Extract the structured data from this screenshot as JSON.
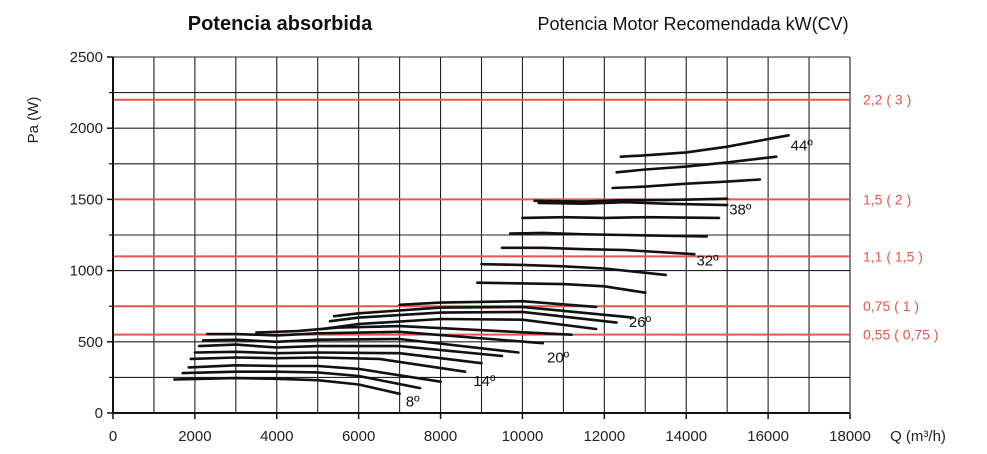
{
  "title_left": "Potencia absorbida",
  "title_right": "Potencia Motor Recomendada kW(CV)",
  "chart_data": {
    "type": "line",
    "ylabel": "Pa (W)",
    "xlabel": "Q (m³/h)",
    "xlim": [
      0,
      18000
    ],
    "ylim": [
      0,
      2500
    ],
    "x_ticks": [
      "0",
      "2000",
      "4000",
      "6000",
      "8000",
      "10000",
      "12000",
      "14000",
      "16000",
      "18000"
    ],
    "y_ticks": [
      "0",
      "500",
      "1000",
      "1500",
      "2000",
      "2500"
    ],
    "grid": true,
    "colors": {
      "curve": "#111111",
      "power_line": "#e8554a",
      "grid": "#222222"
    },
    "power_lines": [
      {
        "label": "0,55 ( 0,75 )",
        "y": 550
      },
      {
        "label": "0,75 ( 1 )",
        "y": 750
      },
      {
        "label": "1,1 ( 1,5 )",
        "y": 1100
      },
      {
        "label": "1,5 ( 2 )",
        "y": 1500
      },
      {
        "label": "2,2 ( 3 )",
        "y": 2200
      }
    ],
    "groups": [
      {
        "label": "8º",
        "label_at": [
          7150,
          80
        ],
        "curves": [
          [
            [
              1500,
              235
            ],
            [
              3000,
              245
            ],
            [
              4000,
              240
            ],
            [
              5000,
              230
            ],
            [
              6000,
              200
            ],
            [
              7000,
              135
            ]
          ],
          [
            [
              1700,
              280
            ],
            [
              3000,
              290
            ],
            [
              4000,
              290
            ],
            [
              5000,
              285
            ],
            [
              6000,
              260
            ],
            [
              7500,
              175
            ]
          ],
          [
            [
              1850,
              320
            ],
            [
              3000,
              335
            ],
            [
              4000,
              330
            ],
            [
              5000,
              330
            ],
            [
              6000,
              310
            ],
            [
              8000,
              220
            ]
          ]
        ]
      },
      {
        "label": "14º",
        "label_at": [
          8800,
          225
        ],
        "curves": [
          [
            [
              1900,
              380
            ],
            [
              3000,
              390
            ],
            [
              4000,
              385
            ],
            [
              5000,
              390
            ],
            [
              6500,
              380
            ],
            [
              8600,
              290
            ]
          ],
          [
            [
              2000,
              425
            ],
            [
              3000,
              430
            ],
            [
              4000,
              420
            ],
            [
              5000,
              425
            ],
            [
              7000,
              420
            ],
            [
              9000,
              350
            ]
          ],
          [
            [
              2100,
              470
            ],
            [
              3000,
              480
            ],
            [
              4000,
              460
            ],
            [
              5000,
              470
            ],
            [
              7000,
              470
            ],
            [
              9500,
              400
            ]
          ]
        ]
      },
      {
        "label": "20º",
        "label_at": [
          10600,
          390
        ],
        "curves": [
          [
            [
              2200,
              510
            ],
            [
              3000,
              515
            ],
            [
              4000,
              500
            ],
            [
              5000,
              515
            ],
            [
              7000,
              520
            ],
            [
              9900,
              425
            ]
          ],
          [
            [
              2300,
              555
            ],
            [
              3000,
              555
            ],
            [
              4000,
              545
            ],
            [
              5000,
              560
            ],
            [
              7000,
              570
            ],
            [
              10500,
              490
            ]
          ],
          [
            [
              3500,
              565
            ],
            [
              4500,
              575
            ],
            [
              5500,
              600
            ],
            [
              7000,
              610
            ],
            [
              11200,
              550
            ]
          ]
        ]
      },
      {
        "label": "26º",
        "label_at": [
          12600,
          640
        ],
        "curves": [
          [
            [
              5100,
              590
            ],
            [
              6000,
              625
            ],
            [
              8000,
              660
            ],
            [
              10000,
              655
            ],
            [
              11800,
              590
            ]
          ],
          [
            [
              5300,
              645
            ],
            [
              6000,
              670
            ],
            [
              8000,
              705
            ],
            [
              10000,
              710
            ],
            [
              12300,
              635
            ]
          ],
          [
            [
              5400,
              680
            ],
            [
              6000,
              700
            ],
            [
              8000,
              740
            ],
            [
              10000,
              745
            ],
            [
              12700,
              670
            ]
          ],
          [
            [
              7000,
              760
            ],
            [
              8000,
              775
            ],
            [
              10000,
              785
            ],
            [
              11800,
              745
            ]
          ]
        ]
      },
      {
        "label": "32º",
        "label_at": [
          14250,
          1070
        ],
        "curves": [
          [
            [
              8900,
              915
            ],
            [
              10000,
              910
            ],
            [
              11000,
              905
            ],
            [
              12000,
              890
            ],
            [
              13000,
              845
            ]
          ],
          [
            [
              9000,
              1045
            ],
            [
              10000,
              1040
            ],
            [
              11000,
              1030
            ],
            [
              12000,
              1015
            ],
            [
              13500,
              970
            ]
          ],
          [
            [
              9500,
              1160
            ],
            [
              10500,
              1160
            ],
            [
              11500,
              1150
            ],
            [
              12500,
              1145
            ],
            [
              14200,
              1115
            ]
          ],
          [
            [
              9700,
              1260
            ],
            [
              10500,
              1265
            ],
            [
              11500,
              1255
            ],
            [
              12500,
              1250
            ],
            [
              14500,
              1240
            ]
          ],
          [
            [
              10000,
              1370
            ],
            [
              11000,
              1375
            ],
            [
              12000,
              1370
            ],
            [
              13000,
              1375
            ],
            [
              14800,
              1370
            ]
          ],
          [
            [
              10400,
              1475
            ],
            [
              11500,
              1470
            ],
            [
              12500,
              1480
            ],
            [
              13500,
              1470
            ],
            [
              15000,
              1460
            ]
          ]
        ]
      },
      {
        "label": "38º",
        "label_at": [
          15050,
          1430
        ],
        "curves": [
          [
            [
              10300,
              1490
            ],
            [
              11500,
              1485
            ],
            [
              12500,
              1495
            ],
            [
              13500,
              1495
            ],
            [
              15000,
              1505
            ]
          ],
          [
            [
              12200,
              1580
            ],
            [
              13000,
              1590
            ],
            [
              14000,
              1610
            ],
            [
              15000,
              1625
            ],
            [
              15800,
              1640
            ]
          ]
        ]
      },
      {
        "label": "44º",
        "label_at": [
          16550,
          1880
        ],
        "curves": [
          [
            [
              12300,
              1690
            ],
            [
              13000,
              1710
            ],
            [
              14000,
              1730
            ],
            [
              15000,
              1760
            ],
            [
              16200,
              1800
            ]
          ],
          [
            [
              12400,
              1800
            ],
            [
              13000,
              1810
            ],
            [
              14000,
              1830
            ],
            [
              15000,
              1870
            ],
            [
              16500,
              1950
            ]
          ]
        ]
      }
    ]
  }
}
